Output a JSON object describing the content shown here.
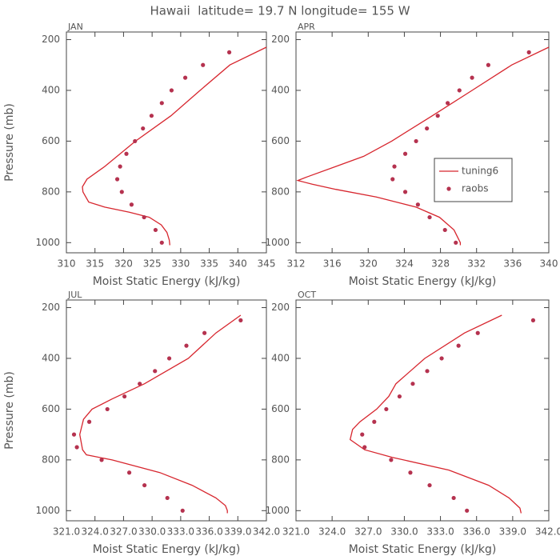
{
  "title": "Hawaii  latitude= 19.7 N longitude= 155 W",
  "chart_data": [
    {
      "type": "line",
      "title": "JAN",
      "xlabel": "Moist Static Energy (kJ/kg)",
      "ylabel": "Pressure (mb)",
      "xlim": [
        310,
        345
      ],
      "xticks": [
        310,
        315,
        320,
        325,
        330,
        335,
        340,
        345
      ],
      "ylim": [
        1040,
        170
      ],
      "yticks": [
        200,
        400,
        600,
        800,
        1000
      ],
      "series": [
        {
          "style": "line",
          "color": "#d7262e",
          "x": [
            345,
            338.6,
            333.4,
            328.3,
            322.1,
            316.7,
            313.6,
            312.8,
            312.9,
            313.9,
            316.7,
            321,
            324.5,
            326.6,
            327.6,
            328,
            328.1
          ],
          "y": [
            230,
            300,
            400,
            500,
            600,
            700,
            750,
            780,
            800,
            840,
            860,
            880,
            900,
            930,
            960,
            990,
            1010
          ]
        },
        {
          "style": "markers",
          "color": "#b5324f",
          "x": [
            338.5,
            333.9,
            330.8,
            328.4,
            326.7,
            324.9,
            323.4,
            322.0,
            320.5,
            319.4,
            318.9,
            319.7,
            321.4,
            323.6,
            325.6,
            326.7
          ],
          "y": [
            250,
            300,
            350,
            400,
            450,
            500,
            550,
            600,
            650,
            700,
            750,
            800,
            850,
            900,
            950,
            1000
          ]
        }
      ]
    },
    {
      "type": "line",
      "title": "APR",
      "xlabel": "Moist Static Energy (kJ/kg)",
      "legend": "right",
      "xlim": [
        312,
        340
      ],
      "xticks": [
        312,
        316,
        320,
        324,
        328,
        332,
        336,
        340
      ],
      "ylim": [
        1040,
        170
      ],
      "yticks": [
        200,
        400,
        600,
        800,
        1000
      ],
      "series": [
        {
          "name": "tuning6",
          "style": "line",
          "color": "#d7262e",
          "x": [
            340,
            335.9,
            331.5,
            327.1,
            322.6,
            319.5,
            316.4,
            313.3,
            312.2,
            313.8,
            316.4,
            320.9,
            325.3,
            327.9,
            329.5,
            330.2,
            330.2
          ],
          "y": [
            230,
            300,
            400,
            500,
            600,
            660,
            700,
            740,
            755,
            770,
            790,
            820,
            860,
            900,
            950,
            1000,
            1010
          ]
        },
        {
          "name": "raobs",
          "style": "markers",
          "color": "#b5324f",
          "x": [
            337.8,
            333.3,
            331.5,
            330.1,
            328.8,
            327.7,
            326.5,
            325.3,
            324.1,
            322.9,
            322.7,
            324.1,
            325.5,
            326.8,
            328.5,
            329.7
          ],
          "y": [
            250,
            300,
            350,
            400,
            450,
            500,
            550,
            600,
            650,
            700,
            750,
            800,
            850,
            900,
            950,
            1000
          ]
        }
      ]
    },
    {
      "type": "line",
      "title": "JUL",
      "xlabel": "Moist Static Energy (kJ/kg)",
      "ylabel": "Pressure (mb)",
      "xlim": [
        321,
        342
      ],
      "xticks": [
        {
          "value": 321,
          "label": "321.0"
        },
        {
          "value": 324,
          "label": "324.0"
        },
        {
          "value": 327,
          "label": "327.0"
        },
        {
          "value": 330,
          "label": "330.0"
        },
        {
          "value": 333,
          "label": "333.0"
        },
        {
          "value": 336,
          "label": "336.0"
        },
        {
          "value": 339,
          "label": "339.0"
        },
        {
          "value": 342,
          "label": "342.0"
        }
      ],
      "ylim": [
        1040,
        170
      ],
      "yticks": [
        200,
        400,
        600,
        800,
        1000
      ],
      "series": [
        {
          "style": "line",
          "color": "#d7262e",
          "x": [
            339.3,
            336.7,
            333.8,
            329.2,
            325.8,
            323.7,
            322.8,
            322.4,
            322.7,
            323.1,
            325.8,
            330.8,
            334.2,
            336.7,
            337.7,
            337.9,
            337.9
          ],
          "y": [
            230,
            300,
            400,
            500,
            560,
            600,
            640,
            700,
            760,
            780,
            800,
            850,
            900,
            950,
            980,
            1000,
            1010
          ]
        },
        {
          "style": "markers",
          "color": "#b5324f",
          "x": [
            339.3,
            335.5,
            333.6,
            331.8,
            330.3,
            328.7,
            327.1,
            325.3,
            323.4,
            321.8,
            322.1,
            324.7,
            327.6,
            329.2,
            331.6,
            333.2
          ],
          "y": [
            250,
            300,
            350,
            400,
            450,
            500,
            550,
            600,
            650,
            700,
            750,
            800,
            850,
            900,
            950,
            1000
          ]
        }
      ]
    },
    {
      "type": "line",
      "title": "OCT",
      "xlabel": "Moist Static Energy (kJ/kg)",
      "xlim": [
        321,
        342
      ],
      "xticks": [
        {
          "value": 321,
          "label": "321.0"
        },
        {
          "value": 324,
          "label": "324.0"
        },
        {
          "value": 327,
          "label": "327.0"
        },
        {
          "value": 330,
          "label": "330.0"
        },
        {
          "value": 333,
          "label": "333.0"
        },
        {
          "value": 336,
          "label": "336.0"
        },
        {
          "value": 339,
          "label": "339.0"
        },
        {
          "value": 342,
          "label": "342.0"
        }
      ],
      "ylim": [
        1040,
        170
      ],
      "yticks": [
        200,
        400,
        600,
        800,
        1000
      ],
      "series": [
        {
          "style": "line",
          "color": "#d7262e",
          "x": [
            338.1,
            335,
            331.7,
            329.3,
            328.7,
            327.7,
            326.3,
            325.7,
            325.5,
            326.7,
            329,
            333.7,
            337,
            338.7,
            339.6,
            339.7
          ],
          "y": [
            230,
            300,
            400,
            500,
            550,
            600,
            650,
            680,
            720,
            760,
            790,
            840,
            900,
            950,
            990,
            1010
          ]
        },
        {
          "style": "markers",
          "color": "#b5324f",
          "x": [
            340.7,
            336.1,
            334.5,
            333.1,
            331.9,
            330.7,
            329.6,
            328.5,
            327.5,
            326.5,
            326.7,
            328.9,
            330.5,
            332.1,
            334.1,
            335.2
          ],
          "y": [
            250,
            300,
            350,
            400,
            450,
            500,
            550,
            600,
            650,
            700,
            750,
            800,
            850,
            900,
            950,
            1000
          ]
        }
      ]
    }
  ]
}
